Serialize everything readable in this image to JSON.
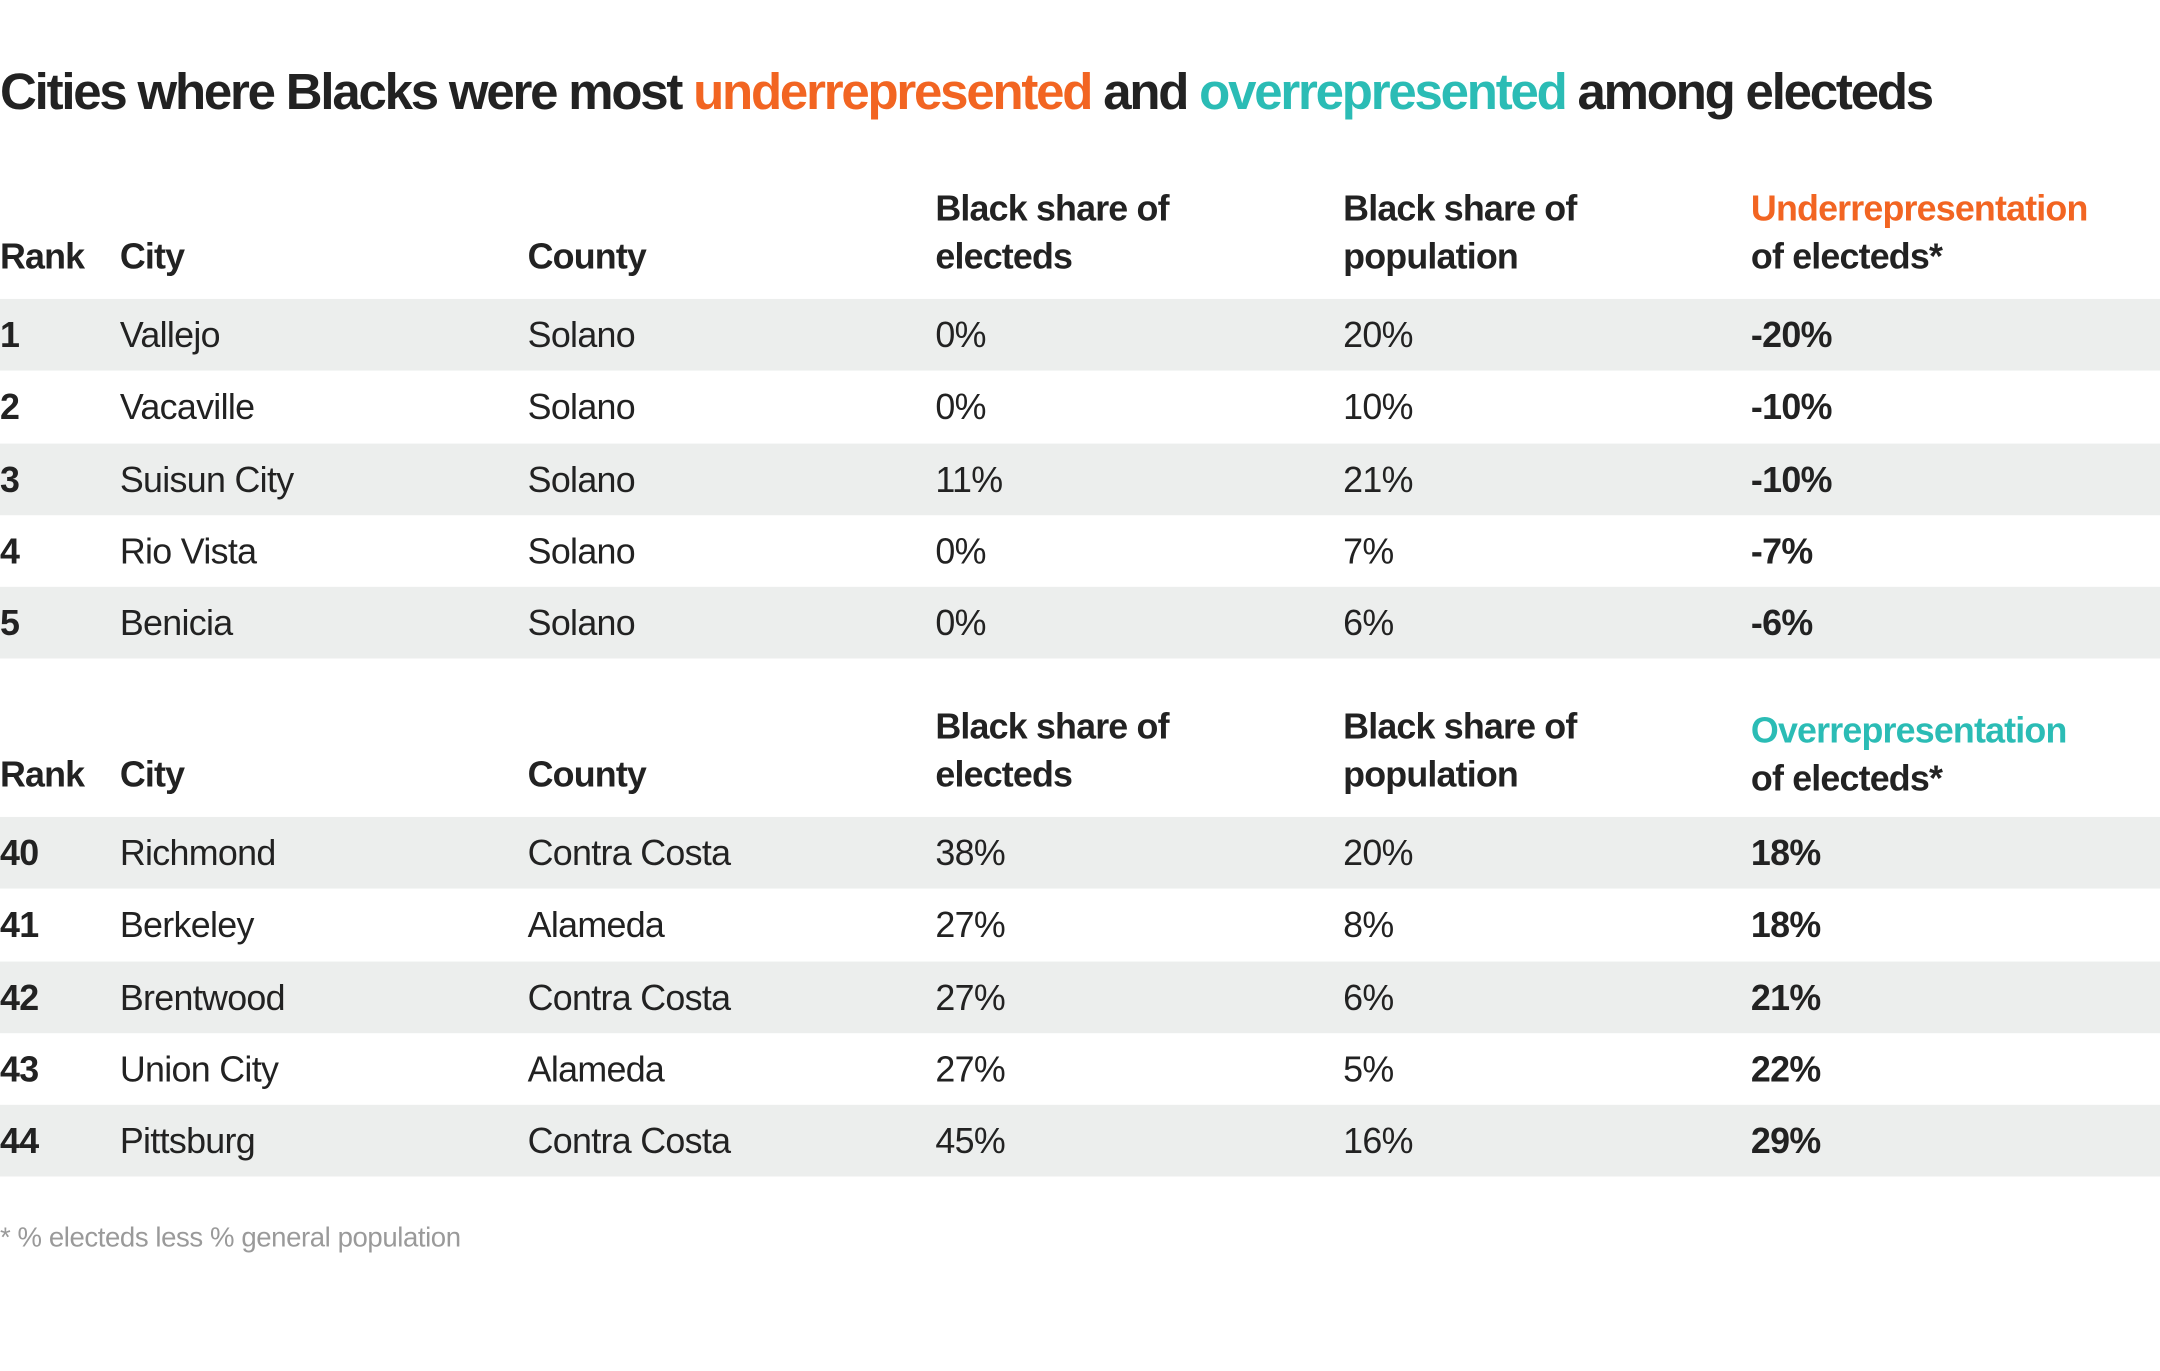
{
  "title": {
    "part1": "Cities where Blacks were most ",
    "under": "underrepresented",
    "part2": " and ",
    "over": "overrepresented",
    "part3": " among electeds"
  },
  "colors": {
    "under": "#f26522",
    "over": "#2bbcb5",
    "row_stripe": "#eceeed"
  },
  "table1": {
    "headers": [
      "Rank",
      "City",
      "County",
      "Black share of electeds",
      "Black share of population",
      "Underrepresentation of electeds*"
    ],
    "header_lines": {
      "h3a": "Black share of",
      "h3b": "electeds",
      "h4a": "Black share of",
      "h4b": "population",
      "h5a": "Underrepresentation",
      "h5b": "of electeds*"
    },
    "rows": [
      [
        "1",
        "Vallejo",
        "Solano",
        "0%",
        "20%",
        "-20%"
      ],
      [
        "2",
        "Vacaville",
        "Solano",
        "0%",
        "10%",
        "-10%"
      ],
      [
        "3",
        "Suisun City",
        "Solano",
        "11%",
        "21%",
        "-10%"
      ],
      [
        "4",
        "Rio Vista",
        "Solano",
        "0%",
        "7%",
        "-7%"
      ],
      [
        "5",
        "Benicia",
        "Solano",
        "0%",
        "6%",
        "-6%"
      ]
    ]
  },
  "table2": {
    "headers": [
      "Rank",
      "City",
      "County",
      "Black share of electeds",
      "Black share of population",
      "Overrepresentation of electeds*"
    ],
    "header_lines": {
      "h3a": "Black share of",
      "h3b": "electeds",
      "h4a": "Black share of",
      "h4b": "population",
      "h5a": "Overrepresentation",
      "h5b": "of electeds*"
    },
    "rows": [
      [
        "40",
        "Richmond",
        "Contra Costa",
        "38%",
        "20%",
        "18%"
      ],
      [
        "41",
        "Berkeley",
        "Alameda",
        "27%",
        "8%",
        "18%"
      ],
      [
        "42",
        "Brentwood",
        "Contra Costa",
        "27%",
        "6%",
        "21%"
      ],
      [
        "43",
        "Union City",
        "Alameda",
        "27%",
        "5%",
        "22%"
      ],
      [
        "44",
        "Pittsburg",
        "Contra Costa",
        "45%",
        "16%",
        "29%"
      ]
    ]
  },
  "footnote": "* % electeds less % general population"
}
